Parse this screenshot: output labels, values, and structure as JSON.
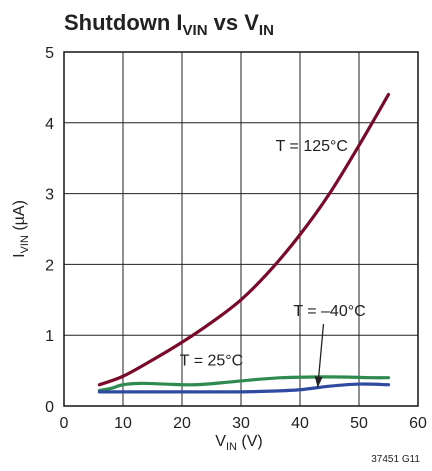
{
  "title": {
    "main": "Shutdown I",
    "sub1": "VIN",
    "mid": " vs V",
    "sub2": "IN"
  },
  "footnote": "37451 G11",
  "chart_data": {
    "type": "line",
    "xlabel": {
      "main": "V",
      "sub": "IN",
      "unit": " (V)"
    },
    "ylabel": {
      "main": "I",
      "sub": "VIN",
      "unit": " (µA)"
    },
    "xlim": [
      0,
      60
    ],
    "ylim": [
      0,
      5
    ],
    "xticks": [
      "0",
      "10",
      "20",
      "30",
      "40",
      "50",
      "60"
    ],
    "yticks": [
      "0",
      "1",
      "2",
      "3",
      "4",
      "5"
    ],
    "grid": true,
    "series": [
      {
        "name": "T = 125°C",
        "color": "#7a0a2a",
        "x": [
          6,
          10,
          15,
          20,
          25,
          30,
          35,
          40,
          45,
          50,
          55
        ],
        "y": [
          0.3,
          0.42,
          0.65,
          0.9,
          1.18,
          1.5,
          1.92,
          2.42,
          3.0,
          3.68,
          4.4
        ]
      },
      {
        "name": "T = 25°C",
        "color": "#2e8a4e",
        "x": [
          6,
          8,
          10,
          13,
          17,
          22,
          27,
          32,
          37,
          42,
          47,
          52,
          55
        ],
        "y": [
          0.22,
          0.25,
          0.3,
          0.32,
          0.31,
          0.3,
          0.33,
          0.37,
          0.4,
          0.41,
          0.41,
          0.4,
          0.4
        ]
      },
      {
        "name": "T = –40°C",
        "color": "#2f4aa0",
        "x": [
          6,
          10,
          15,
          20,
          25,
          30,
          35,
          40,
          45,
          50,
          55
        ],
        "y": [
          0.2,
          0.2,
          0.2,
          0.2,
          0.2,
          0.2,
          0.21,
          0.23,
          0.28,
          0.31,
          0.3
        ]
      }
    ],
    "annotations": [
      {
        "text": "T = 125°C",
        "x": 42,
        "y": 3.6
      },
      {
        "text": "T = 25°C",
        "x": 25,
        "y": 0.57
      },
      {
        "text": "T = –40°C",
        "x": 45,
        "y": 1.27,
        "arrow_to": {
          "x": 43,
          "y": 0.26
        }
      }
    ]
  }
}
